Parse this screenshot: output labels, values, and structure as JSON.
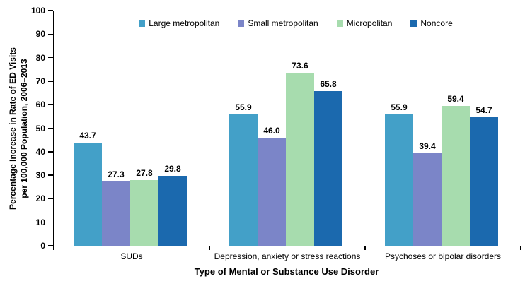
{
  "chart_data": {
    "type": "bar",
    "title": "",
    "xlabel": "Type of Mental or Substance Use Disorder",
    "ylabel": "Percentage Increase in Rate of ED Visits per 100,000 Population, 2006–2013",
    "ylabel_line1": "Percentage Increase in Rate of ED Visits",
    "ylabel_line2": "per 100,000 Population, 2006–2013",
    "ylim": [
      0,
      100
    ],
    "ytick_step": 10,
    "grid": false,
    "legend_position": "top",
    "value_label_decimals": 1,
    "axis_color": "#000000",
    "background_color": "#ffffff",
    "categories": [
      "SUDs",
      "Depression, anxiety or stress reactions",
      "Psychoses or bipolar disorders"
    ],
    "series": [
      {
        "name": "Large metropolitan",
        "color": "#43a0c8",
        "values": [
          43.7,
          55.9,
          55.9
        ]
      },
      {
        "name": "Small metropolitan",
        "color": "#7b85c8",
        "values": [
          27.3,
          46.0,
          39.4
        ]
      },
      {
        "name": "Micropolitan",
        "color": "#a7dcae",
        "values": [
          27.8,
          73.6,
          59.4
        ]
      },
      {
        "name": "Noncore",
        "color": "#1b69ae",
        "values": [
          29.8,
          65.8,
          54.7
        ]
      }
    ]
  }
}
